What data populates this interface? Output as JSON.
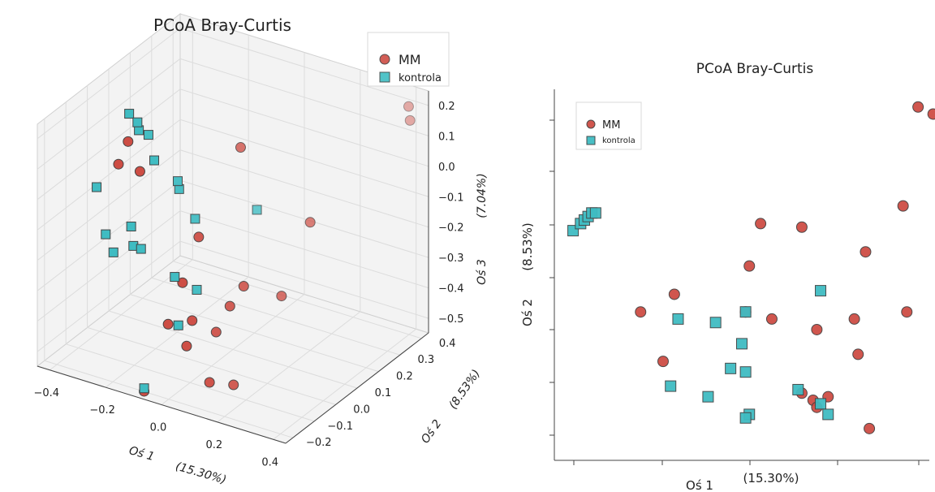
{
  "colors": {
    "mm": "#cd4d44",
    "kontrola": "#3fbcc2",
    "marker_edge": "#444444"
  },
  "chart_data": [
    {
      "type": "scatter",
      "projection": "3d",
      "title": "PCoA Bray-Curtis",
      "xlabel": "Oś 1",
      "xlabel_pct": "(15.30%)",
      "ylabel": "Oś 2",
      "ylabel_pct": "(8.53%)",
      "zlabel": "Oś 3",
      "zlabel_pct": "(7.04%)",
      "xlim": [
        -0.45,
        0.45
      ],
      "ylim": [
        -0.25,
        0.45
      ],
      "zlim": [
        -0.55,
        0.25
      ],
      "x_ticks": [
        "−0.4",
        "−0.2",
        "0.0",
        "0.2",
        "0.4"
      ],
      "y_ticks": [
        "−0.2",
        "−0.1",
        "0.0",
        "0.1",
        "0.2",
        "0.3",
        "0.4"
      ],
      "z_ticks": [
        "0.2",
        "0.1",
        "0.0",
        "−0.1",
        "−0.2",
        "−0.3",
        "−0.4",
        "−0.5"
      ],
      "grid": true,
      "legend": {
        "position": "top-right",
        "entries": [
          "MM",
          "kontrola"
        ]
      },
      "series": [
        {
          "name": "MM",
          "marker": "circle",
          "points": [
            [
              0.4,
              0.42,
              0.2
            ],
            [
              0.42,
              0.4,
              0.17
            ],
            [
              -0.38,
              0.1,
              0.03
            ],
            [
              -0.4,
              0.08,
              -0.04
            ],
            [
              -0.3,
              0.05,
              -0.02
            ],
            [
              0.28,
              0.1,
              -0.05
            ],
            [
              -0.12,
              0.3,
              -0.02
            ],
            [
              -0.05,
              0.0,
              -0.14
            ],
            [
              0.15,
              -0.05,
              -0.22
            ],
            [
              0.25,
              0.0,
              -0.25
            ],
            [
              0.1,
              -0.05,
              -0.3
            ],
            [
              -0.05,
              -0.15,
              -0.35
            ],
            [
              0.0,
              -0.1,
              -0.35
            ],
            [
              0.05,
              -0.05,
              -0.4
            ],
            [
              -0.02,
              -0.1,
              -0.44
            ],
            [
              0.1,
              -0.15,
              -0.5
            ],
            [
              0.15,
              -0.1,
              -0.52
            ],
            [
              -0.1,
              -0.2,
              -0.56
            ],
            [
              -0.02,
              -0.12,
              -0.22
            ]
          ]
        },
        {
          "name": "kontrola",
          "marker": "square",
          "points": [
            [
              -0.45,
              0.2,
              0.05
            ],
            [
              -0.42,
              0.2,
              0.03
            ],
            [
              -0.4,
              0.18,
              0.02
            ],
            [
              -0.38,
              0.2,
              0.0
            ],
            [
              -0.3,
              0.12,
              -0.02
            ],
            [
              -0.2,
              0.1,
              -0.05
            ],
            [
              -0.18,
              0.08,
              -0.06
            ],
            [
              -0.42,
              0.0,
              -0.08
            ],
            [
              -0.1,
              0.05,
              -0.12
            ],
            [
              0.05,
              0.15,
              -0.1
            ],
            [
              -0.35,
              -0.05,
              -0.19
            ],
            [
              -0.3,
              -0.08,
              -0.22
            ],
            [
              -0.25,
              -0.05,
              -0.2
            ],
            [
              -0.2,
              -0.08,
              -0.18
            ],
            [
              -0.28,
              -0.02,
              -0.16
            ],
            [
              -0.1,
              -0.05,
              -0.26
            ],
            [
              -0.02,
              -0.05,
              -0.28
            ],
            [
              -0.05,
              -0.1,
              -0.38
            ],
            [
              -0.1,
              -0.2,
              -0.55
            ]
          ]
        }
      ]
    },
    {
      "type": "scatter",
      "title": "PCoA Bray-Curtis",
      "xlabel": "Oś 1",
      "xlabel_pct": "(15.30%)",
      "ylabel": "Oś 2",
      "ylabel_pct": "(8.53%)",
      "xlim": [
        -0.05,
        0.95
      ],
      "ylim": [
        -0.65,
        0.4
      ],
      "x_ticks": [
        "",
        "",
        "",
        "",
        ""
      ],
      "y_ticks": [
        "",
        "",
        "",
        "",
        "",
        ""
      ],
      "grid": false,
      "legend": {
        "position": "top-left",
        "entries": [
          "MM",
          "kontrola"
        ]
      },
      "series": [
        {
          "name": "MM",
          "marker": "circle",
          "points": [
            [
              0.92,
              0.35
            ],
            [
              0.96,
              0.33
            ],
            [
              0.88,
              0.07
            ],
            [
              0.5,
              0.02
            ],
            [
              0.61,
              0.01
            ],
            [
              0.78,
              -0.06
            ],
            [
              0.27,
              -0.18
            ],
            [
              0.18,
              -0.23
            ],
            [
              0.89,
              -0.23
            ],
            [
              0.46,
              -0.23
            ],
            [
              0.53,
              -0.25
            ],
            [
              0.65,
              -0.28
            ],
            [
              0.75,
              -0.25
            ],
            [
              0.76,
              -0.35
            ],
            [
              0.24,
              -0.37
            ],
            [
              0.61,
              -0.46
            ],
            [
              0.68,
              -0.47
            ],
            [
              0.64,
              -0.48
            ],
            [
              0.65,
              -0.5
            ],
            [
              0.79,
              -0.56
            ],
            [
              0.47,
              -0.1
            ]
          ]
        },
        {
          "name": "kontrola",
          "marker": "square",
          "points": [
            [
              0.0,
              0.0
            ],
            [
              0.02,
              0.02
            ],
            [
              0.03,
              0.03
            ],
            [
              0.04,
              0.04
            ],
            [
              0.05,
              0.05
            ],
            [
              0.06,
              0.05
            ],
            [
              0.66,
              -0.17
            ],
            [
              0.46,
              -0.23
            ],
            [
              0.28,
              -0.25
            ],
            [
              0.38,
              -0.26
            ],
            [
              0.45,
              -0.32
            ],
            [
              0.42,
              -0.39
            ],
            [
              0.46,
              -0.4
            ],
            [
              0.26,
              -0.44
            ],
            [
              0.36,
              -0.47
            ],
            [
              0.6,
              -0.45
            ],
            [
              0.66,
              -0.49
            ],
            [
              0.68,
              -0.52
            ],
            [
              0.47,
              -0.52
            ],
            [
              0.46,
              -0.53
            ]
          ]
        }
      ]
    }
  ]
}
